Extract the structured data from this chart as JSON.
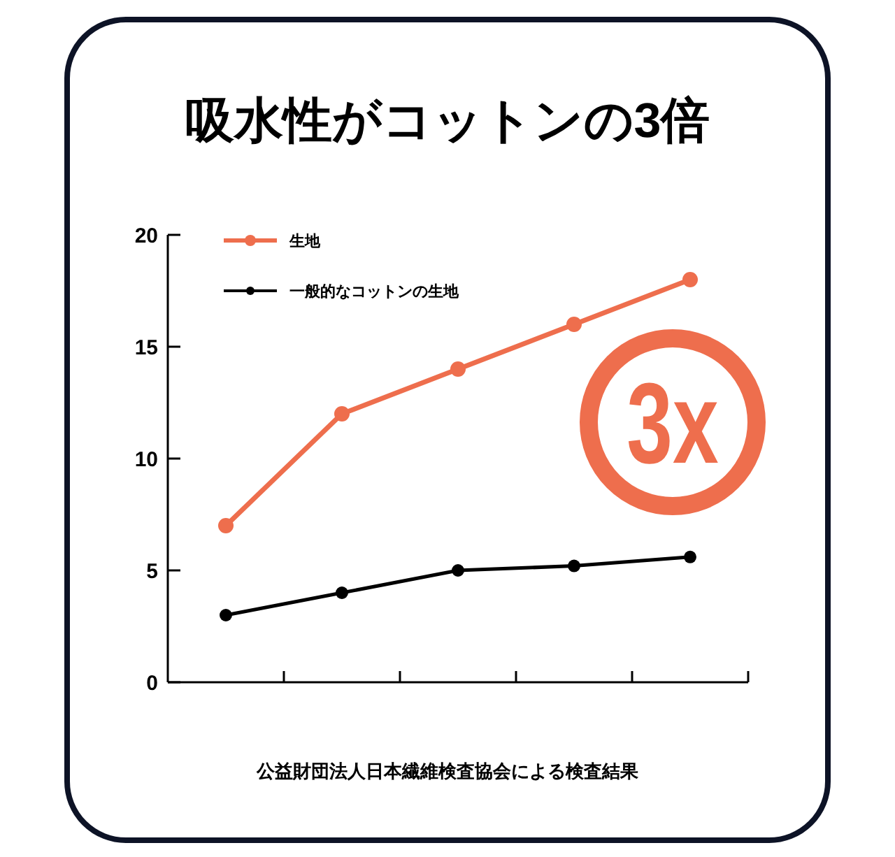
{
  "chart_data": {
    "type": "line",
    "title": "吸水性がコットンの3倍",
    "categories": [
      null,
      null,
      null,
      null,
      null
    ],
    "series": [
      {
        "name": "生地",
        "color": "#ee6e4d",
        "values": [
          7,
          12,
          14,
          16,
          18
        ]
      },
      {
        "name": "一般的なコットンの生地",
        "color": "#000000",
        "values": [
          3,
          4,
          5,
          5.2,
          5.6
        ]
      }
    ],
    "ylim": [
      0,
      20
    ],
    "yticks": [
      0,
      5,
      10,
      15,
      20
    ],
    "legend": "top left",
    "marker": "circle",
    "line_style": "solid",
    "annotations": [
      "3x",
      "公益財団法人日本繊維検査協会による検査結果"
    ]
  }
}
